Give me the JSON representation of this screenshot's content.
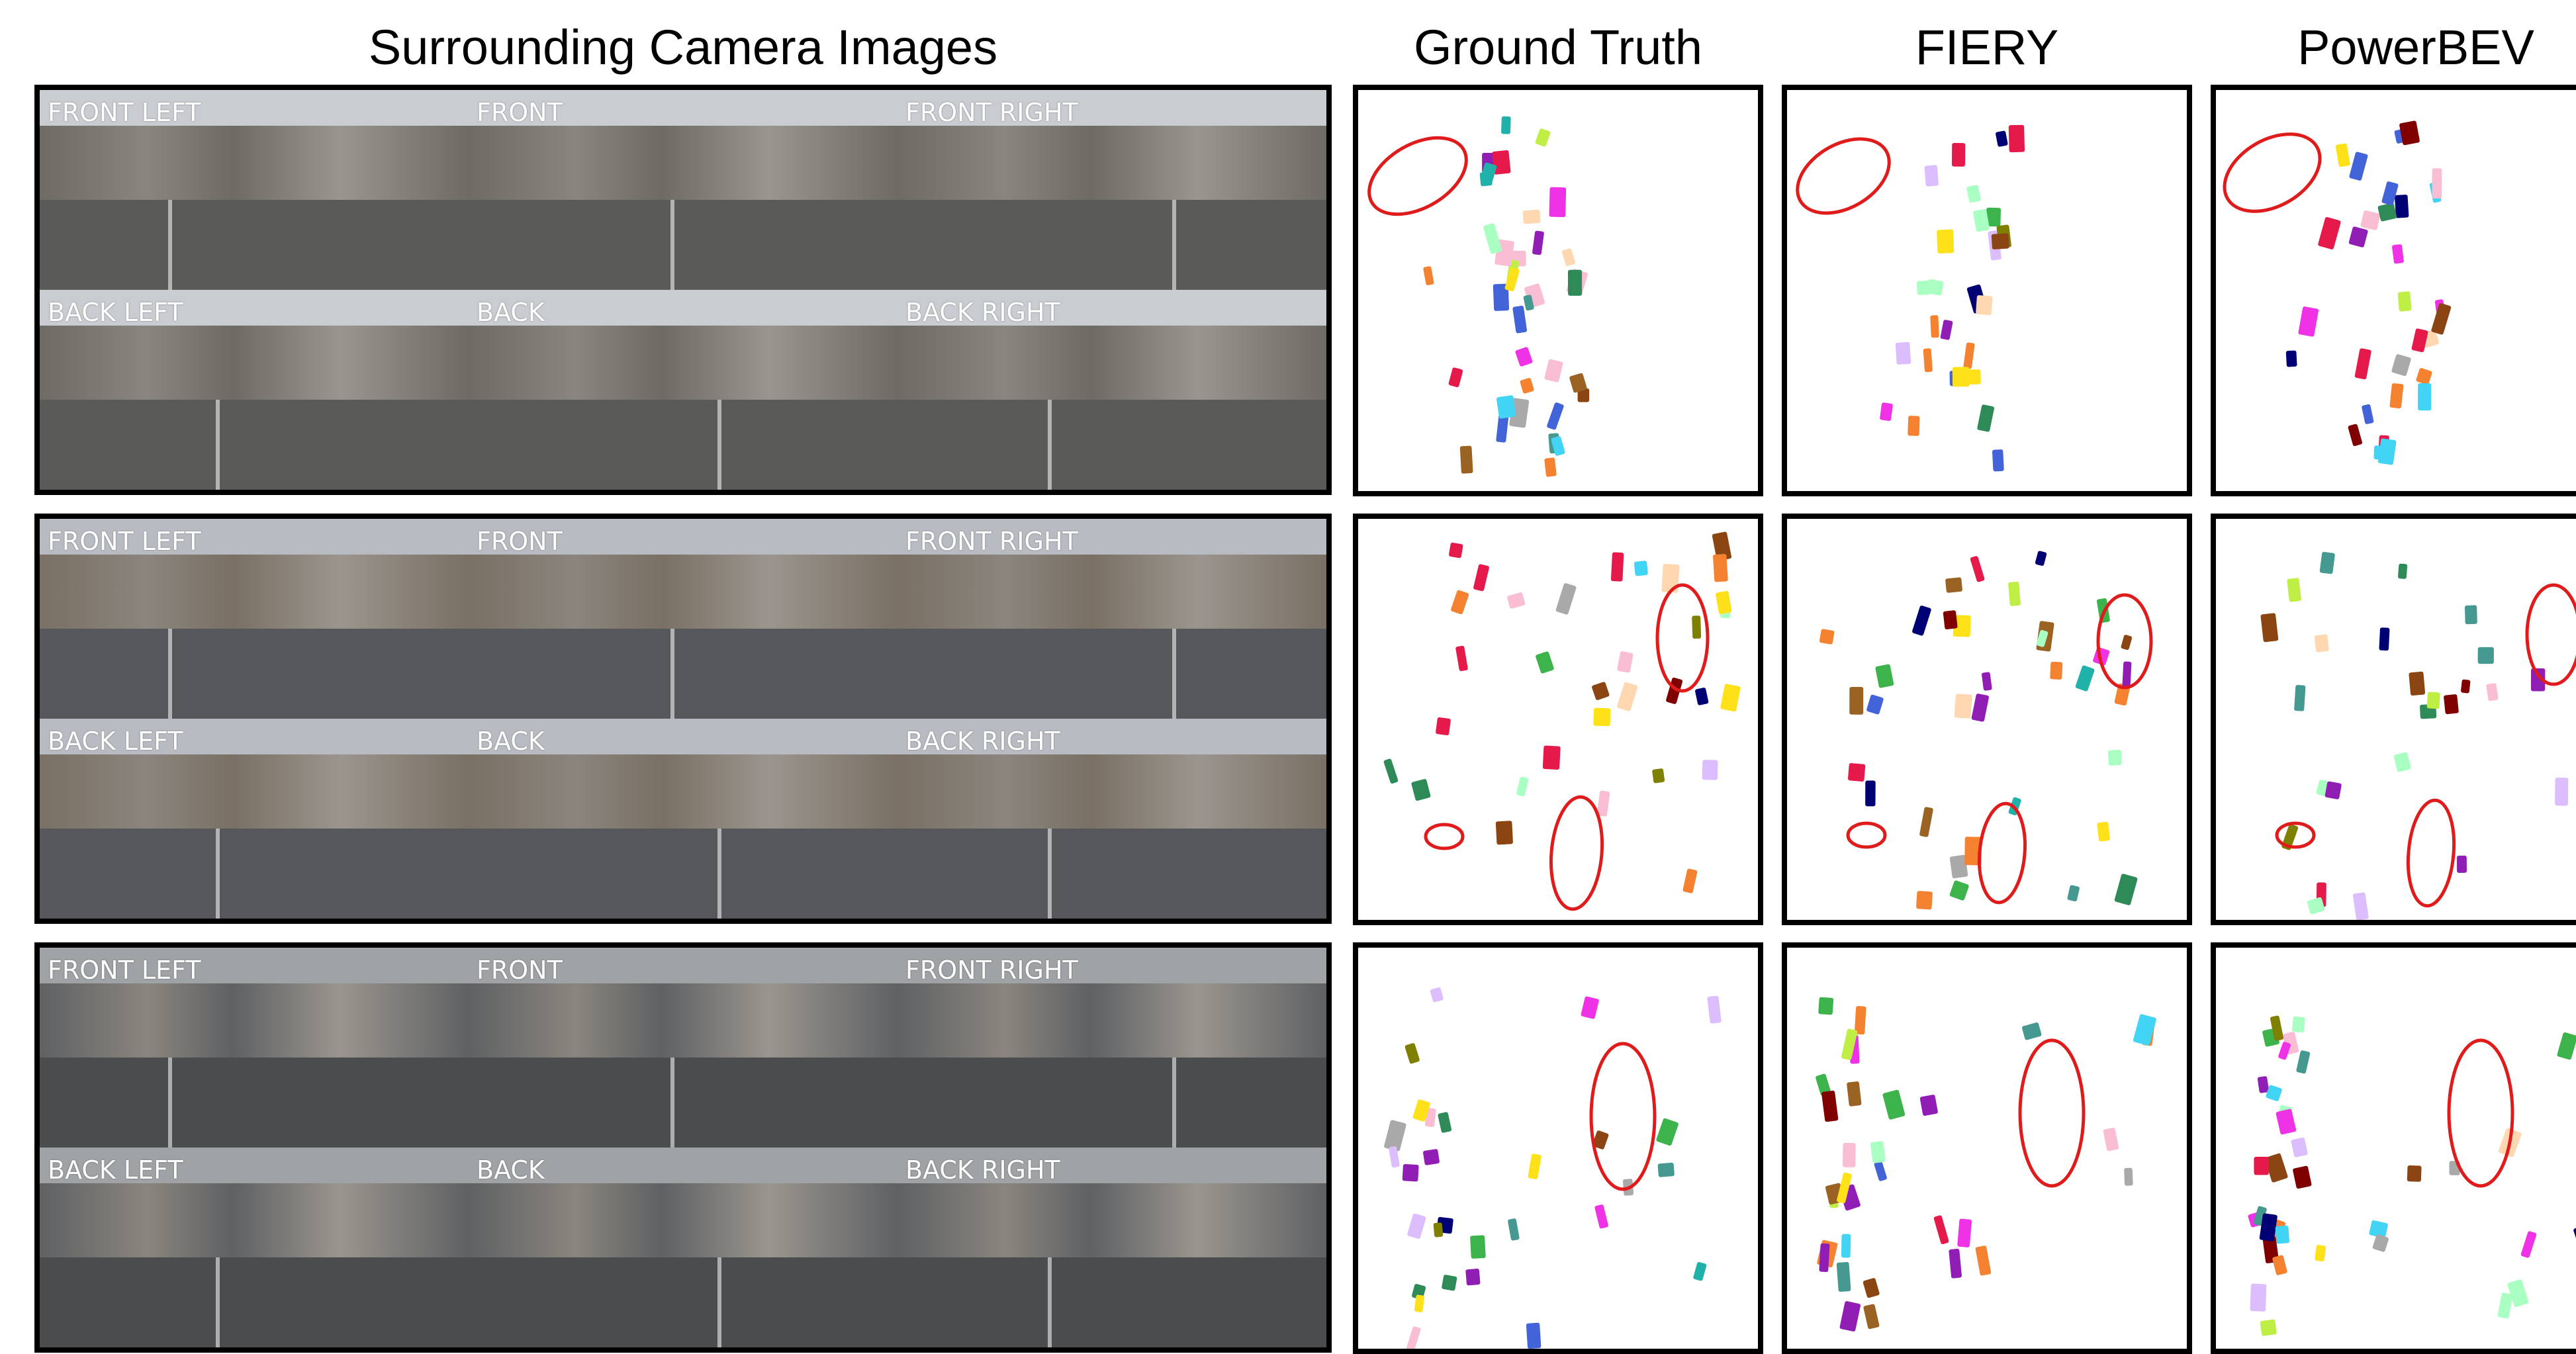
{
  "headers": {
    "cameras": "Surrounding Camera Images",
    "ground_truth": "Ground Truth",
    "fiery": "FIERY",
    "powerbev": "PowerBEV"
  },
  "camera_labels": [
    "FRONT LEFT",
    "FRONT",
    "FRONT RIGHT",
    "BACK LEFT",
    "BACK",
    "BACK RIGHT"
  ],
  "scenes": [
    {
      "sky": "#c9ccd0",
      "building": "#6e6a64",
      "road": "#5a5a58"
    },
    {
      "sky": "#b8bcc2",
      "building": "#7a7064",
      "road": "#55575a"
    },
    {
      "sky": "#9fa3a6",
      "building": "#5f6164",
      "road": "#4a4c4e"
    }
  ],
  "highlight_color": "#e01b1b"
}
